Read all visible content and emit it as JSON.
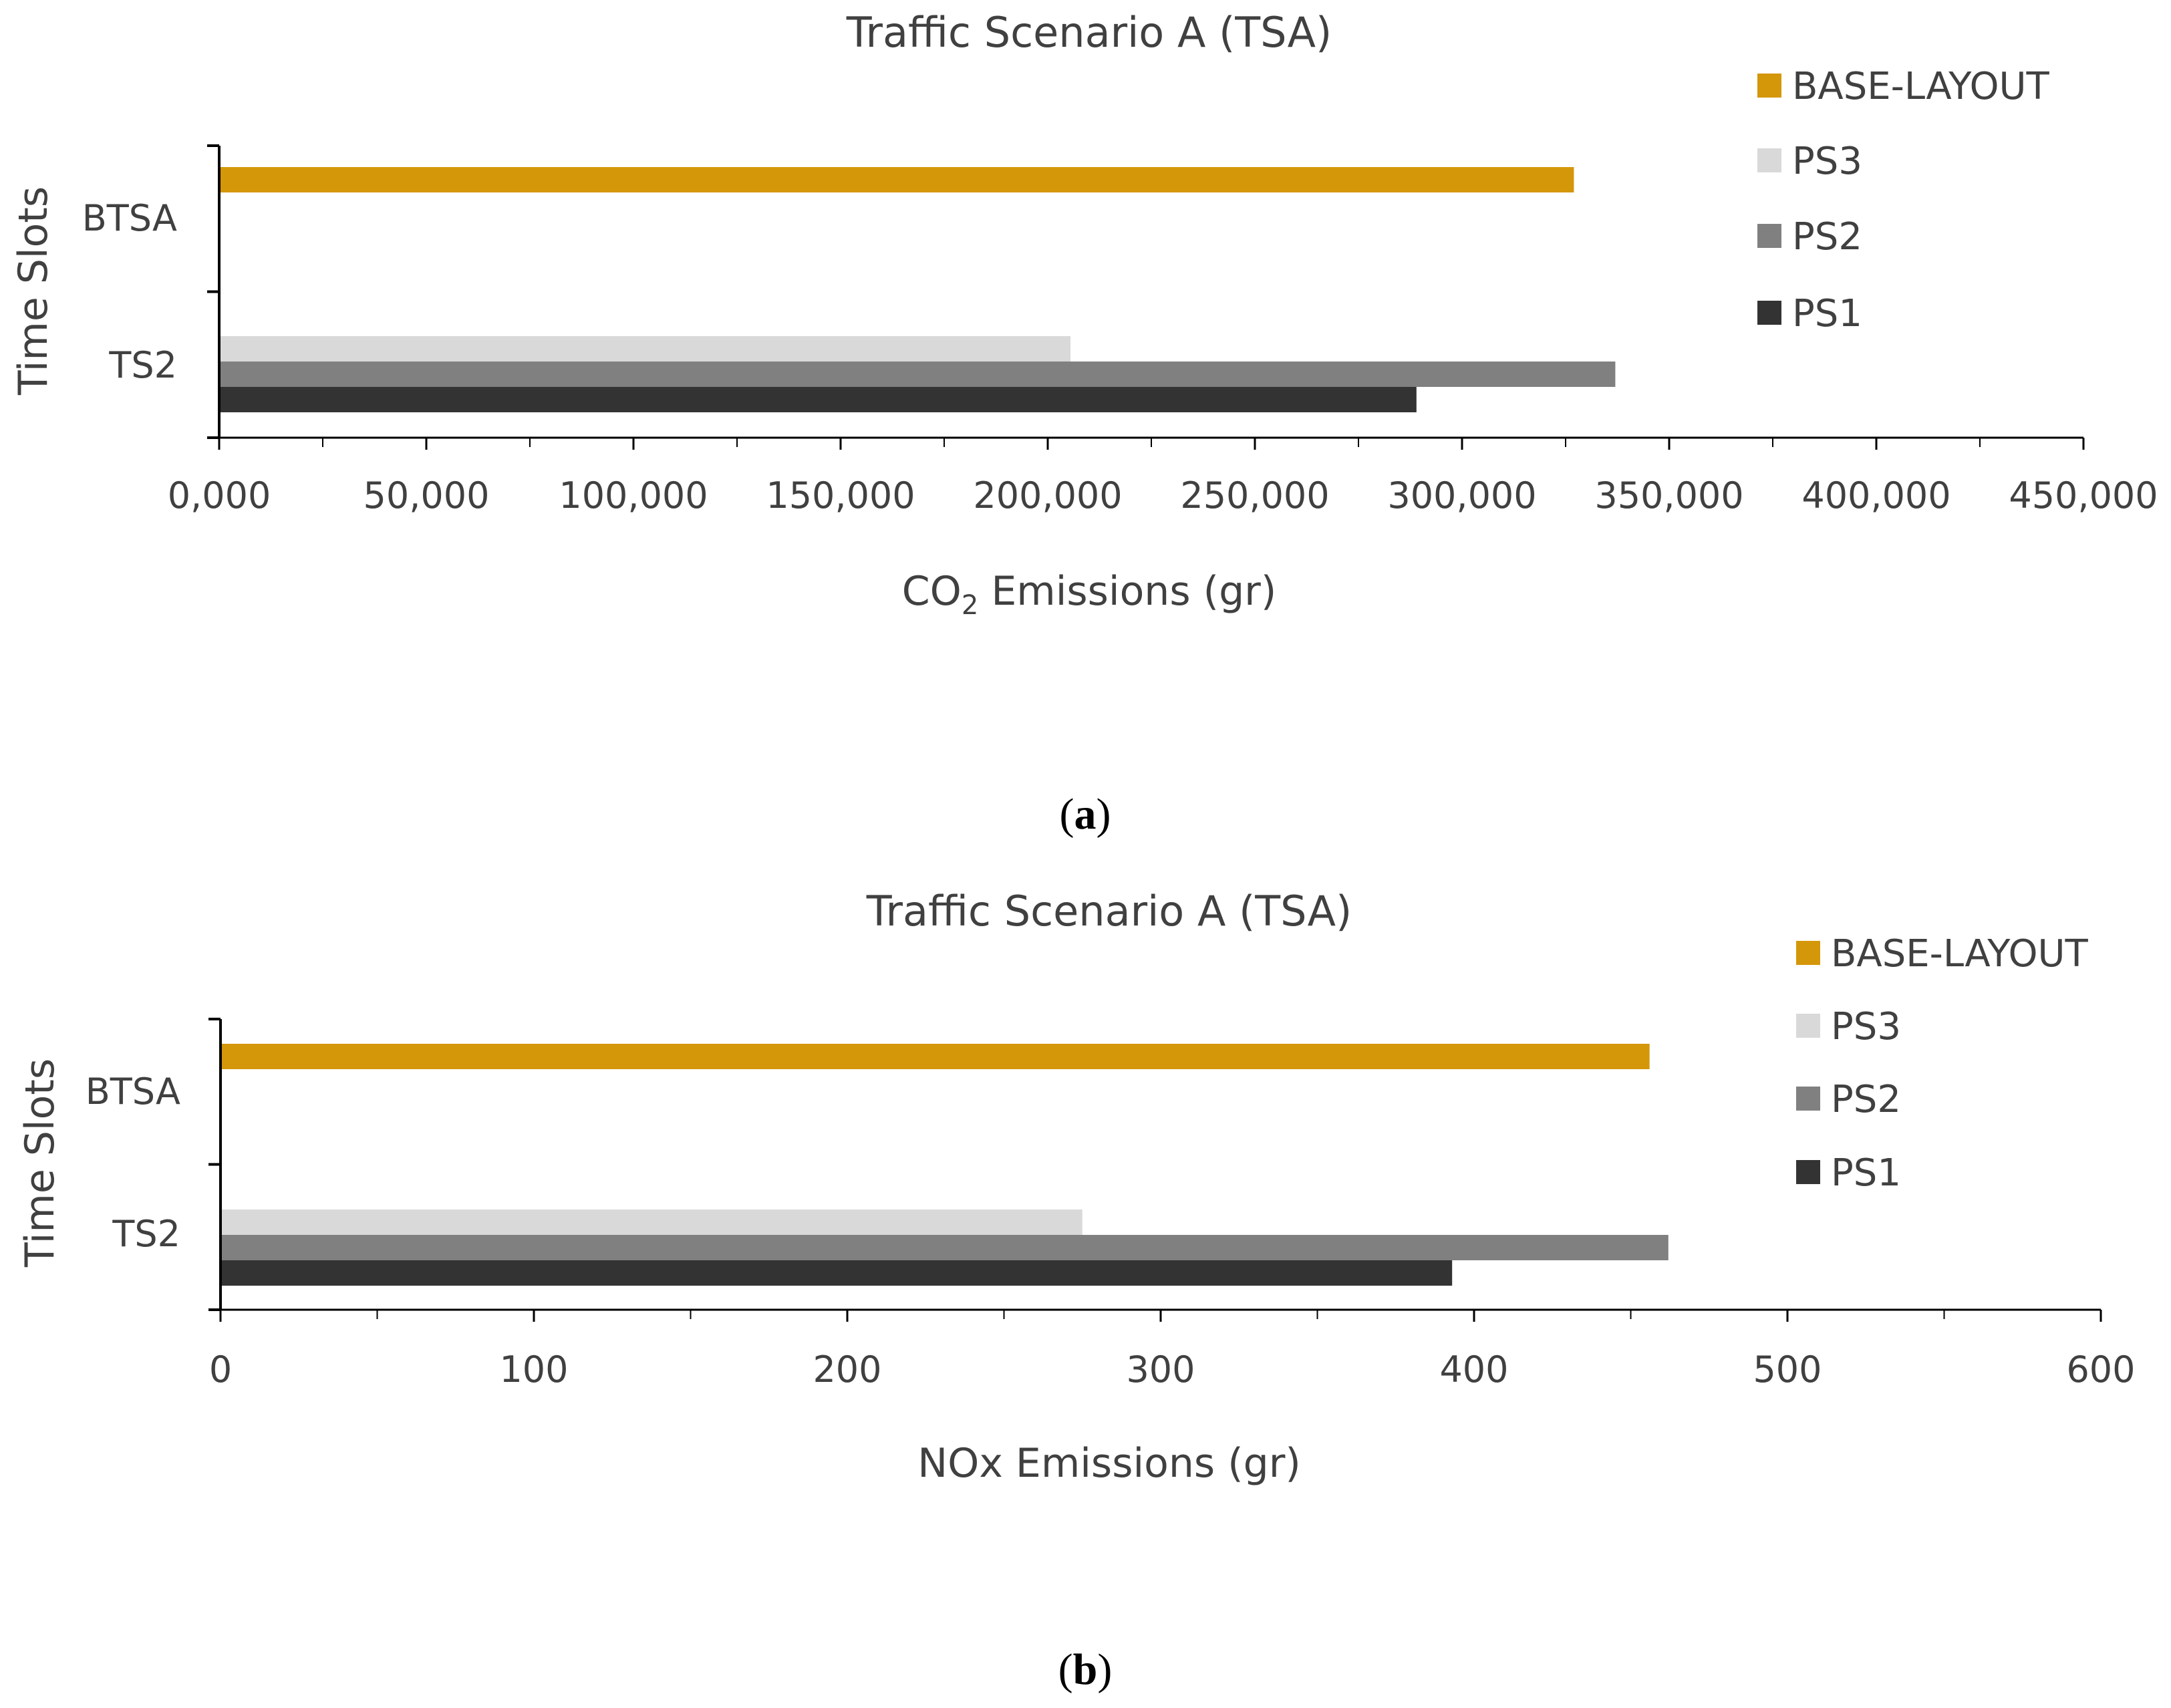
{
  "chart_data": [
    {
      "type": "bar",
      "orientation": "horizontal",
      "title": "Traffic Scenario A (TSA)",
      "xlabel_main": "CO",
      "xlabel_sub": "2",
      "xlabel_rest": " Emissions (gr)",
      "ylabel": "Time Slots",
      "categories": [
        "BTSA",
        "TS2"
      ],
      "xlim": [
        0,
        450000
      ],
      "xticks": [
        0,
        50000,
        100000,
        150000,
        200000,
        250000,
        300000,
        350000,
        400000,
        450000
      ],
      "xtick_labels": [
        "0,000",
        "50,000",
        "100,000",
        "150,000",
        "200,000",
        "250,000",
        "300,000",
        "350,000",
        "400,000",
        "450,000"
      ],
      "series": [
        {
          "name": "BASE-LAYOUT",
          "color": "#D4970A",
          "values": [
            327000,
            null
          ]
        },
        {
          "name": "PS3",
          "color": "#D9D9D9",
          "values": [
            null,
            205500
          ]
        },
        {
          "name": "PS2",
          "color": "#808080",
          "values": [
            null,
            337000
          ]
        },
        {
          "name": "PS1",
          "color": "#333333",
          "values": [
            null,
            289000
          ]
        }
      ],
      "legend_position": "right",
      "caption_open": "(",
      "caption_letter": "a",
      "caption_close": ")"
    },
    {
      "type": "bar",
      "orientation": "horizontal",
      "title": "Traffic Scenario A (TSA)",
      "xlabel": "NOx Emissions (gr)",
      "ylabel": "Time Slots",
      "categories": [
        "BTSA",
        "TS2"
      ],
      "xlim": [
        0,
        600
      ],
      "xticks": [
        0,
        100,
        200,
        300,
        400,
        500,
        600
      ],
      "xtick_labels": [
        "0",
        "100",
        "200",
        "300",
        "400",
        "500",
        "600"
      ],
      "series": [
        {
          "name": "BASE-LAYOUT",
          "color": "#D4970A",
          "values": [
            456,
            null
          ]
        },
        {
          "name": "PS3",
          "color": "#D9D9D9",
          "values": [
            null,
            275
          ]
        },
        {
          "name": "PS2",
          "color": "#808080",
          "values": [
            null,
            462
          ]
        },
        {
          "name": "PS1",
          "color": "#333333",
          "values": [
            null,
            393
          ]
        }
      ],
      "legend_position": "right",
      "caption_open": "(",
      "caption_letter": "b",
      "caption_close": ")"
    }
  ]
}
